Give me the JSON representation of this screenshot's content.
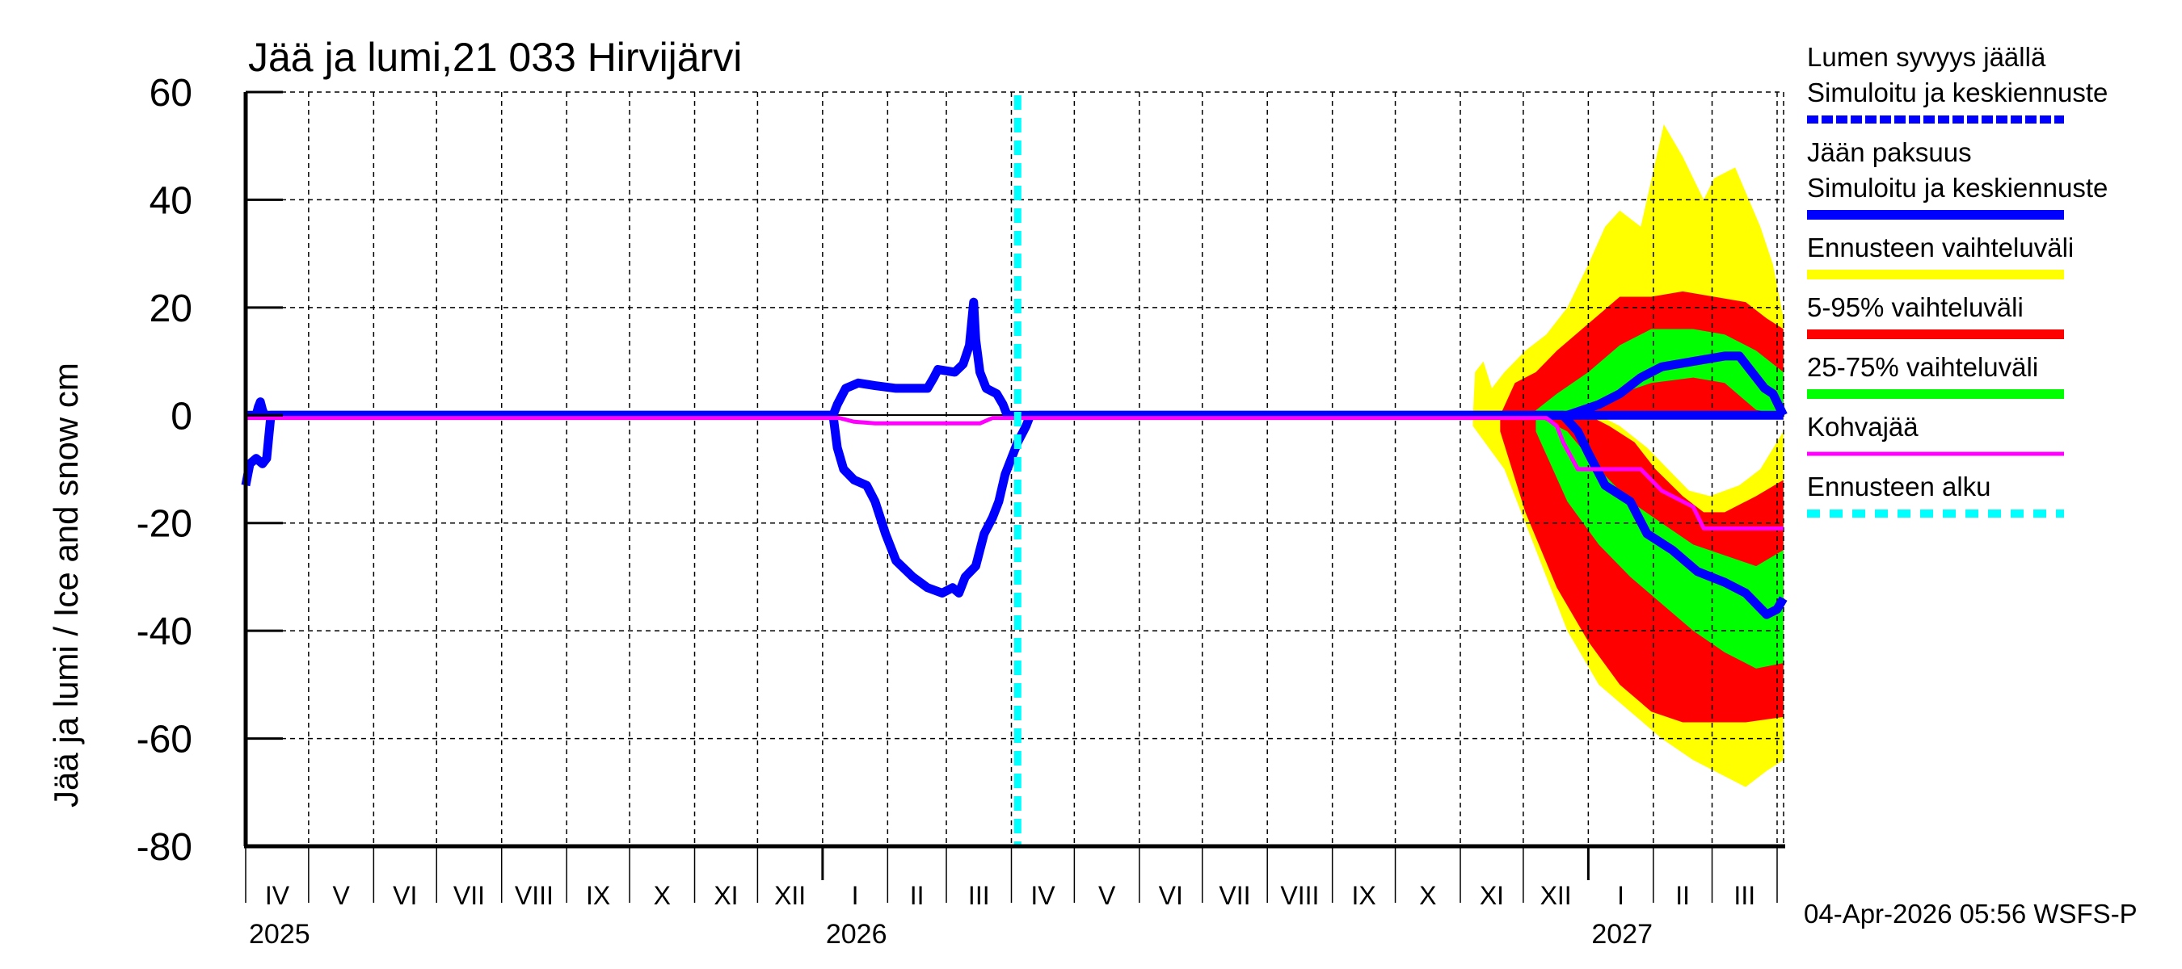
{
  "chart_data": {
    "type": "area",
    "title": "Jää ja lumi,21 033 Hirvijärvi",
    "ylabel": "Jää ja lumi / Ice and snow    cm",
    "xlabel": "",
    "ylim": [
      -80,
      60
    ],
    "yticks": [
      60,
      40,
      20,
      0,
      -20,
      -40,
      -60,
      -80
    ],
    "grid": true,
    "legend_position": "right",
    "x_month_labels": [
      "IV",
      "V",
      "VI",
      "VII",
      "VIII",
      "IX",
      "X",
      "XI",
      "XII",
      "I",
      "II",
      "III",
      "IV",
      "V",
      "VI",
      "VII",
      "VIII",
      "IX",
      "X",
      "XI",
      "XII",
      "I",
      "II",
      "III"
    ],
    "x_year_labels": [
      {
        "label": "2025",
        "month_index": 0
      },
      {
        "label": "2026",
        "month_index": 9
      },
      {
        "label": "2027",
        "month_index": 21
      }
    ],
    "x_range_days": [
      0,
      733
    ],
    "x_origin": "2025-04-01",
    "forecast_start_day": 368,
    "timestamp": "04-Apr-2026 05:56 WSFS-P",
    "legend": [
      {
        "label_line1": "Lumen syvyys jäällä",
        "label_line2": "Simuloitu ja keskiennuste",
        "color": "#0000ff",
        "style": "dashed-thick"
      },
      {
        "label_line1": "Jään paksuus",
        "label_line2": "Simuloitu ja keskiennuste",
        "color": "#0000ff",
        "style": "solid-thick"
      },
      {
        "label_line1": "Ennusteen vaihteluväli",
        "label_line2": "",
        "color": "#ffff00",
        "style": "band"
      },
      {
        "label_line1": "5-95% vaihteluväli",
        "label_line2": "",
        "color": "#ff0000",
        "style": "band"
      },
      {
        "label_line1": "25-75% vaihteluväli",
        "label_line2": "",
        "color": "#00ff00",
        "style": "band"
      },
      {
        "label_line1": "Kohvajää",
        "label_line2": "",
        "color": "#ff00ff",
        "style": "solid"
      },
      {
        "label_line1": "Ennusteen alku",
        "label_line2": "",
        "color": "#00ffff",
        "style": "dashed"
      }
    ],
    "series": [
      {
        "name": "Lumen syvyys jäällä (snow depth, positive)",
        "color": "#0000ff",
        "points": [
          [
            0,
            0
          ],
          [
            5,
            0
          ],
          [
            6,
            1.5
          ],
          [
            7,
            2.5
          ],
          [
            8,
            1
          ],
          [
            9,
            0
          ],
          [
            280,
            0
          ],
          [
            282,
            2
          ],
          [
            286,
            5
          ],
          [
            292,
            6
          ],
          [
            300,
            5.5
          ],
          [
            310,
            5
          ],
          [
            325,
            5
          ],
          [
            328,
            7
          ],
          [
            330,
            8.5
          ],
          [
            338,
            8
          ],
          [
            342,
            9.5
          ],
          [
            345,
            13
          ],
          [
            346,
            17
          ],
          [
            347,
            21
          ],
          [
            348,
            14
          ],
          [
            350,
            8
          ],
          [
            353,
            5
          ],
          [
            358,
            4
          ],
          [
            361,
            2
          ],
          [
            363,
            0
          ],
          [
            733,
            0
          ]
        ]
      },
      {
        "name": "Jään paksuus (ice thickness, negative)",
        "color": "#0000ff",
        "points": [
          [
            0,
            -13
          ],
          [
            2,
            -9
          ],
          [
            5,
            -8
          ],
          [
            8,
            -9
          ],
          [
            10,
            -8
          ],
          [
            12,
            0
          ],
          [
            280,
            0
          ],
          [
            282,
            -6
          ],
          [
            285,
            -10
          ],
          [
            290,
            -12
          ],
          [
            296,
            -13
          ],
          [
            300,
            -16
          ],
          [
            305,
            -22
          ],
          [
            310,
            -27
          ],
          [
            318,
            -30
          ],
          [
            325,
            -32
          ],
          [
            332,
            -33
          ],
          [
            337,
            -32
          ],
          [
            340,
            -33
          ],
          [
            343,
            -30
          ],
          [
            348,
            -28
          ],
          [
            352,
            -22
          ],
          [
            356,
            -19
          ],
          [
            359,
            -16
          ],
          [
            362,
            -11
          ],
          [
            365,
            -8
          ],
          [
            368,
            -5
          ],
          [
            372,
            -2
          ],
          [
            374,
            0
          ],
          [
            620,
            0
          ],
          [
            628,
            0
          ],
          [
            635,
            -3
          ],
          [
            640,
            -7
          ],
          [
            648,
            -13
          ],
          [
            660,
            -16
          ],
          [
            668,
            -22
          ],
          [
            680,
            -25
          ],
          [
            692,
            -29
          ],
          [
            705,
            -31
          ],
          [
            715,
            -33
          ],
          [
            725,
            -37
          ],
          [
            730,
            -36
          ],
          [
            733,
            -34
          ]
        ]
      },
      {
        "name": "Kohvajää",
        "color": "#ff00ff",
        "points": [
          [
            0,
            -0.5
          ],
          [
            283,
            -0.5
          ],
          [
            290,
            -1.2
          ],
          [
            300,
            -1.5
          ],
          [
            350,
            -1.5
          ],
          [
            356,
            -0.5
          ],
          [
            620,
            -0.5
          ],
          [
            625,
            -2
          ],
          [
            628,
            -5
          ],
          [
            635,
            -10
          ],
          [
            665,
            -10
          ],
          [
            675,
            -14
          ],
          [
            690,
            -17
          ],
          [
            695,
            -21
          ],
          [
            733,
            -21
          ]
        ]
      },
      {
        "name": "Forecast snow median (positive, after forecast start)",
        "color": "#0000ff",
        "points": [
          [
            630,
            0
          ],
          [
            645,
            2
          ],
          [
            655,
            4
          ],
          [
            665,
            7
          ],
          [
            675,
            9
          ],
          [
            690,
            10
          ],
          [
            705,
            11
          ],
          [
            712,
            11
          ],
          [
            718,
            8
          ],
          [
            724,
            5
          ],
          [
            728,
            4
          ],
          [
            733,
            0
          ]
        ]
      }
    ],
    "bands": [
      {
        "name": "Ennusteen vaihteluväli (upper, snow)",
        "color": "#ffff00",
        "upper": [
          [
            585,
            0
          ],
          [
            586,
            8
          ],
          [
            590,
            10
          ],
          [
            594,
            5
          ],
          [
            600,
            8
          ],
          [
            610,
            12
          ],
          [
            620,
            15
          ],
          [
            630,
            20
          ],
          [
            640,
            28
          ],
          [
            648,
            35
          ],
          [
            655,
            38
          ],
          [
            665,
            35
          ],
          [
            676,
            54
          ],
          [
            685,
            48
          ],
          [
            695,
            40
          ],
          [
            700,
            44
          ],
          [
            710,
            46
          ],
          [
            722,
            35
          ],
          [
            728,
            28
          ],
          [
            733,
            18
          ]
        ],
        "lower": [
          [
            585,
            0
          ],
          [
            733,
            0
          ]
        ]
      },
      {
        "name": "5-95% (upper, snow)",
        "color": "#ff0000",
        "upper": [
          [
            598,
            0
          ],
          [
            605,
            6
          ],
          [
            615,
            8
          ],
          [
            625,
            12
          ],
          [
            640,
            17
          ],
          [
            655,
            22
          ],
          [
            670,
            22
          ],
          [
            685,
            23
          ],
          [
            700,
            22
          ],
          [
            715,
            21
          ],
          [
            725,
            18
          ],
          [
            733,
            16
          ]
        ],
        "lower": [
          [
            598,
            0
          ],
          [
            733,
            0
          ]
        ]
      },
      {
        "name": "25-75% (upper, snow)",
        "color": "#00ff00",
        "upper": [
          [
            612,
            0
          ],
          [
            625,
            4
          ],
          [
            640,
            8
          ],
          [
            655,
            13
          ],
          [
            670,
            16
          ],
          [
            690,
            16
          ],
          [
            705,
            15
          ],
          [
            720,
            12
          ],
          [
            733,
            8
          ]
        ],
        "lower": [
          [
            612,
            0
          ],
          [
            640,
            1
          ],
          [
            655,
            4
          ],
          [
            670,
            6
          ],
          [
            690,
            7
          ],
          [
            705,
            6
          ],
          [
            720,
            1
          ],
          [
            733,
            0
          ]
        ]
      },
      {
        "name": "Ennusteen vaihteluväli (lower, ice)",
        "color": "#ffff00",
        "upper": [
          [
            585,
            0
          ],
          [
            733,
            0
          ]
        ],
        "lower": [
          [
            585,
            -2
          ],
          [
            600,
            -10
          ],
          [
            615,
            -25
          ],
          [
            630,
            -40
          ],
          [
            645,
            -50
          ],
          [
            660,
            -55
          ],
          [
            675,
            -60
          ],
          [
            690,
            -64
          ],
          [
            705,
            -67
          ],
          [
            715,
            -69
          ],
          [
            725,
            -66
          ],
          [
            733,
            -64
          ]
        ]
      },
      {
        "name": "5-95% (lower, ice)",
        "color": "#ff0000",
        "upper": [
          [
            598,
            0
          ],
          [
            640,
            0
          ],
          [
            650,
            -2
          ],
          [
            662,
            -5
          ],
          [
            672,
            -10
          ],
          [
            685,
            -15
          ],
          [
            695,
            -18
          ],
          [
            705,
            -18
          ],
          [
            720,
            -15
          ],
          [
            733,
            -12
          ]
        ],
        "lower": [
          [
            598,
            -3
          ],
          [
            610,
            -18
          ],
          [
            625,
            -32
          ],
          [
            640,
            -42
          ],
          [
            655,
            -50
          ],
          [
            670,
            -55
          ],
          [
            685,
            -57
          ],
          [
            700,
            -57
          ],
          [
            715,
            -57
          ],
          [
            733,
            -56
          ]
        ]
      },
      {
        "name": "Ennusteen vaihteluväli white hole (lower)",
        "color": "#ffffff",
        "upper": [
          [
            645,
            0
          ],
          [
            733,
            0
          ]
        ],
        "lower": [
          [
            645,
            0
          ],
          [
            655,
            -2
          ],
          [
            668,
            -6
          ],
          [
            678,
            -10
          ],
          [
            688,
            -14
          ],
          [
            698,
            -15
          ],
          [
            712,
            -13
          ],
          [
            722,
            -10
          ],
          [
            733,
            -3
          ]
        ]
      },
      {
        "name": "25-75% (lower, ice)",
        "color": "#00ff00",
        "upper": [
          [
            615,
            0
          ],
          [
            630,
            -3
          ],
          [
            645,
            -10
          ],
          [
            660,
            -16
          ],
          [
            675,
            -20
          ],
          [
            690,
            -24
          ],
          [
            705,
            -26
          ],
          [
            720,
            -28
          ],
          [
            733,
            -25
          ]
        ],
        "lower": [
          [
            615,
            -3
          ],
          [
            630,
            -16
          ],
          [
            645,
            -24
          ],
          [
            660,
            -30
          ],
          [
            675,
            -35
          ],
          [
            690,
            -40
          ],
          [
            705,
            -44
          ],
          [
            720,
            -47
          ],
          [
            733,
            -46
          ]
        ]
      }
    ]
  }
}
